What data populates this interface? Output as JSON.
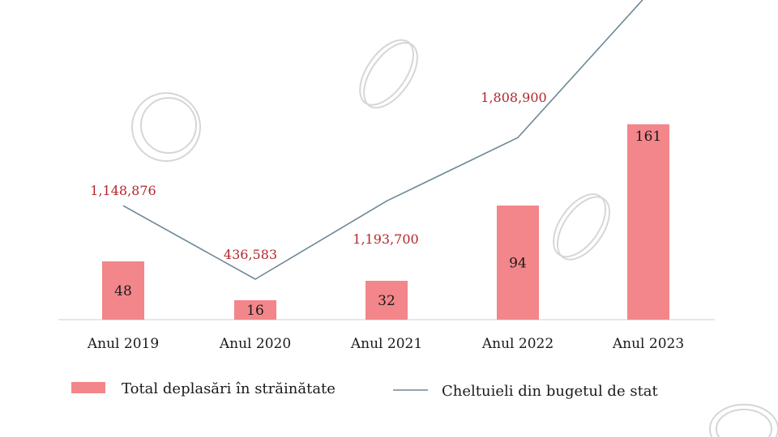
{
  "colors": {
    "bar": "#f2868a",
    "line": "#6e8796",
    "line_label": "#b3262b",
    "axis": "#cfcfcf"
  },
  "chart_data": {
    "type": "bar",
    "categories": [
      "Anul 2019",
      "Anul 2020",
      "Anul 2021",
      "Anul 2022",
      "Anul 2023"
    ],
    "series": [
      {
        "name": "Total deplasări în străinătate",
        "type": "bar",
        "values": [
          48,
          16,
          32,
          94,
          161
        ]
      },
      {
        "name": "Cheltuieli din bugetul de stat",
        "type": "line",
        "values": [
          1148876,
          436583,
          1193700,
          1808900,
          null
        ],
        "labels": [
          "1,148,876",
          "436,583",
          "1,193,700",
          "1,808,900",
          ""
        ]
      }
    ],
    "legend": {
      "position": "bottom",
      "items": [
        "Total deplasări în străinătate",
        "Cheltuieli din bugetul de stat"
      ]
    },
    "grid": false
  }
}
